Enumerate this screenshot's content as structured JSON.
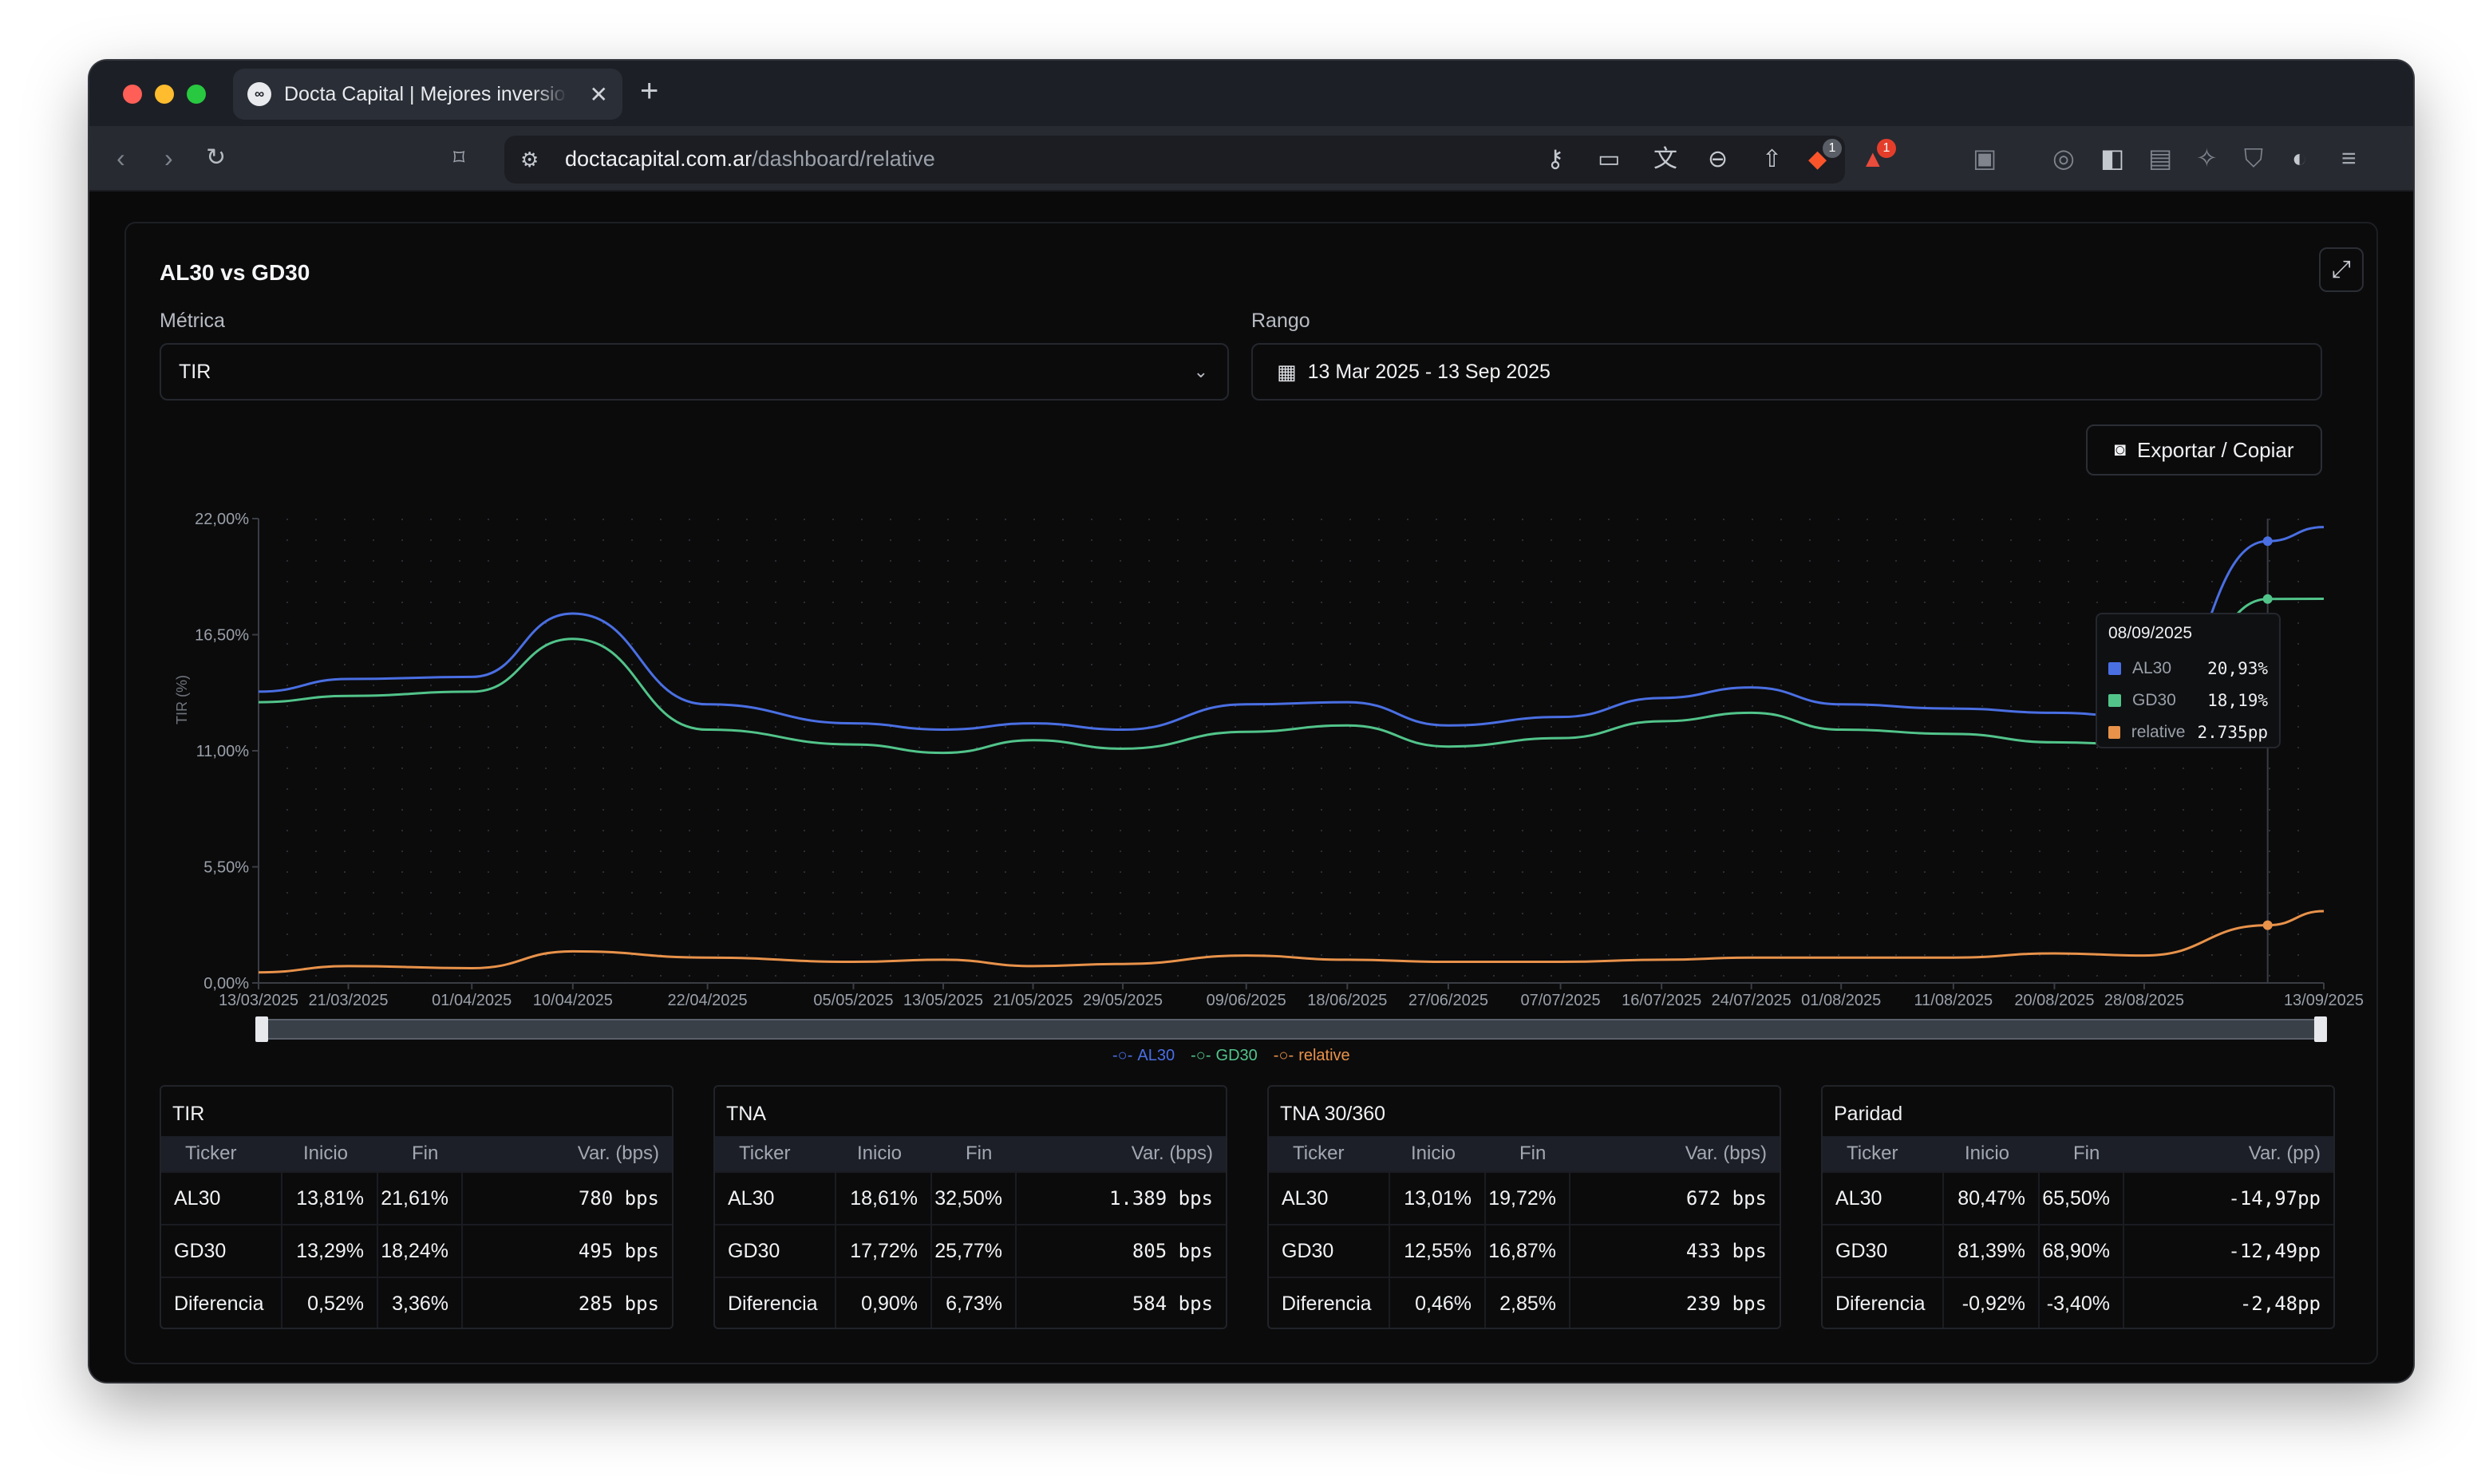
{
  "browser": {
    "tab_title": "Docta Capital | Mejores inversiones",
    "tab_favicon": "∞",
    "url_host": "doctacapital.com.ar",
    "url_path": "/dashboard/relative",
    "brave_badge": "1",
    "alert_badge": "1"
  },
  "card": {
    "title": "AL30 vs GD30",
    "metric_label": "Métrica",
    "metric_value": "TIR",
    "range_label": "Rango",
    "range_value": "13 Mar 2025 - 13 Sep 2025",
    "export_label": "Exportar / Copiar"
  },
  "chart_data": {
    "type": "line",
    "ylabel": "TIR (%)",
    "ylim": [
      0,
      22
    ],
    "yticks": [
      "0,00%",
      "5,50%",
      "11,00%",
      "16,50%",
      "22,00%"
    ],
    "xticks": [
      "13/03/2025",
      "21/03/2025",
      "01/04/2025",
      "10/04/2025",
      "22/04/2025",
      "05/05/2025",
      "13/05/2025",
      "21/05/2025",
      "29/05/2025",
      "09/06/2025",
      "18/06/2025",
      "27/06/2025",
      "07/07/2025",
      "16/07/2025",
      "24/07/2025",
      "01/08/2025",
      "11/08/2025",
      "20/08/2025",
      "28/08/2025",
      "13/09/2025"
    ],
    "x_dates": [
      "2025-03-13",
      "2025-03-21",
      "2025-04-01",
      "2025-04-10",
      "2025-04-22",
      "2025-05-05",
      "2025-05-13",
      "2025-05-21",
      "2025-05-29",
      "2025-06-09",
      "2025-06-18",
      "2025-06-27",
      "2025-07-07",
      "2025-07-16",
      "2025-07-24",
      "2025-08-01",
      "2025-08-11",
      "2025-08-20",
      "2025-08-28",
      "2025-09-08",
      "2025-09-13"
    ],
    "series": [
      {
        "name": "AL30",
        "color": "#4a6fe3",
        "values": [
          13.8,
          14.4,
          14.5,
          17.5,
          13.2,
          12.3,
          12.0,
          12.3,
          12.0,
          13.2,
          13.3,
          12.2,
          12.6,
          13.5,
          14.0,
          13.2,
          13.0,
          12.8,
          12.6,
          20.93,
          21.6
        ]
      },
      {
        "name": "GD30",
        "color": "#52c48a",
        "values": [
          13.3,
          13.6,
          13.8,
          16.3,
          12.0,
          11.3,
          10.9,
          11.5,
          11.1,
          11.9,
          12.2,
          11.2,
          11.6,
          12.4,
          12.8,
          12.0,
          11.8,
          11.4,
          11.3,
          18.19,
          18.2
        ]
      },
      {
        "name": "relative",
        "color": "#e8924a",
        "values": [
          0.5,
          0.8,
          0.7,
          1.5,
          1.2,
          1.0,
          1.1,
          0.8,
          0.9,
          1.3,
          1.1,
          1.0,
          1.0,
          1.1,
          1.2,
          1.2,
          1.2,
          1.4,
          1.3,
          2.735,
          3.4
        ]
      }
    ],
    "legend_position": "bottom",
    "grid": true,
    "tooltip": {
      "date": "08/09/2025",
      "rows": [
        {
          "name": "AL30",
          "value": "20,93%",
          "color": "#4a6fe3"
        },
        {
          "name": "GD30",
          "value": "18,19%",
          "color": "#52c48a"
        },
        {
          "name": "relative",
          "value": "2.735pp",
          "color": "#e8924a"
        }
      ]
    }
  },
  "tables": [
    {
      "title": "TIR",
      "headers": [
        "Ticker",
        "Inicio",
        "Fin",
        "Var. (bps)"
      ],
      "rows": [
        [
          "AL30",
          "13,81%",
          "21,61%",
          "780 bps"
        ],
        [
          "GD30",
          "13,29%",
          "18,24%",
          "495 bps"
        ],
        [
          "Diferencia",
          "0,52%",
          "3,36%",
          "285 bps"
        ]
      ]
    },
    {
      "title": "TNA",
      "headers": [
        "Ticker",
        "Inicio",
        "Fin",
        "Var. (bps)"
      ],
      "rows": [
        [
          "AL30",
          "18,61%",
          "32,50%",
          "1.389 bps"
        ],
        [
          "GD30",
          "17,72%",
          "25,77%",
          "805 bps"
        ],
        [
          "Diferencia",
          "0,90%",
          "6,73%",
          "584 bps"
        ]
      ]
    },
    {
      "title": "TNA 30/360",
      "headers": [
        "Ticker",
        "Inicio",
        "Fin",
        "Var. (bps)"
      ],
      "rows": [
        [
          "AL30",
          "13,01%",
          "19,72%",
          "672 bps"
        ],
        [
          "GD30",
          "12,55%",
          "16,87%",
          "433 bps"
        ],
        [
          "Diferencia",
          "0,46%",
          "2,85%",
          "239 bps"
        ]
      ]
    },
    {
      "title": "Paridad",
      "headers": [
        "Ticker",
        "Inicio",
        "Fin",
        "Var. (pp)"
      ],
      "rows": [
        [
          "AL30",
          "80,47%",
          "65,50%",
          "-14,97pp"
        ],
        [
          "GD30",
          "81,39%",
          "68,90%",
          "-12,49pp"
        ],
        [
          "Diferencia",
          "-0,92%",
          "-3,40%",
          "-2,48pp"
        ]
      ]
    }
  ]
}
